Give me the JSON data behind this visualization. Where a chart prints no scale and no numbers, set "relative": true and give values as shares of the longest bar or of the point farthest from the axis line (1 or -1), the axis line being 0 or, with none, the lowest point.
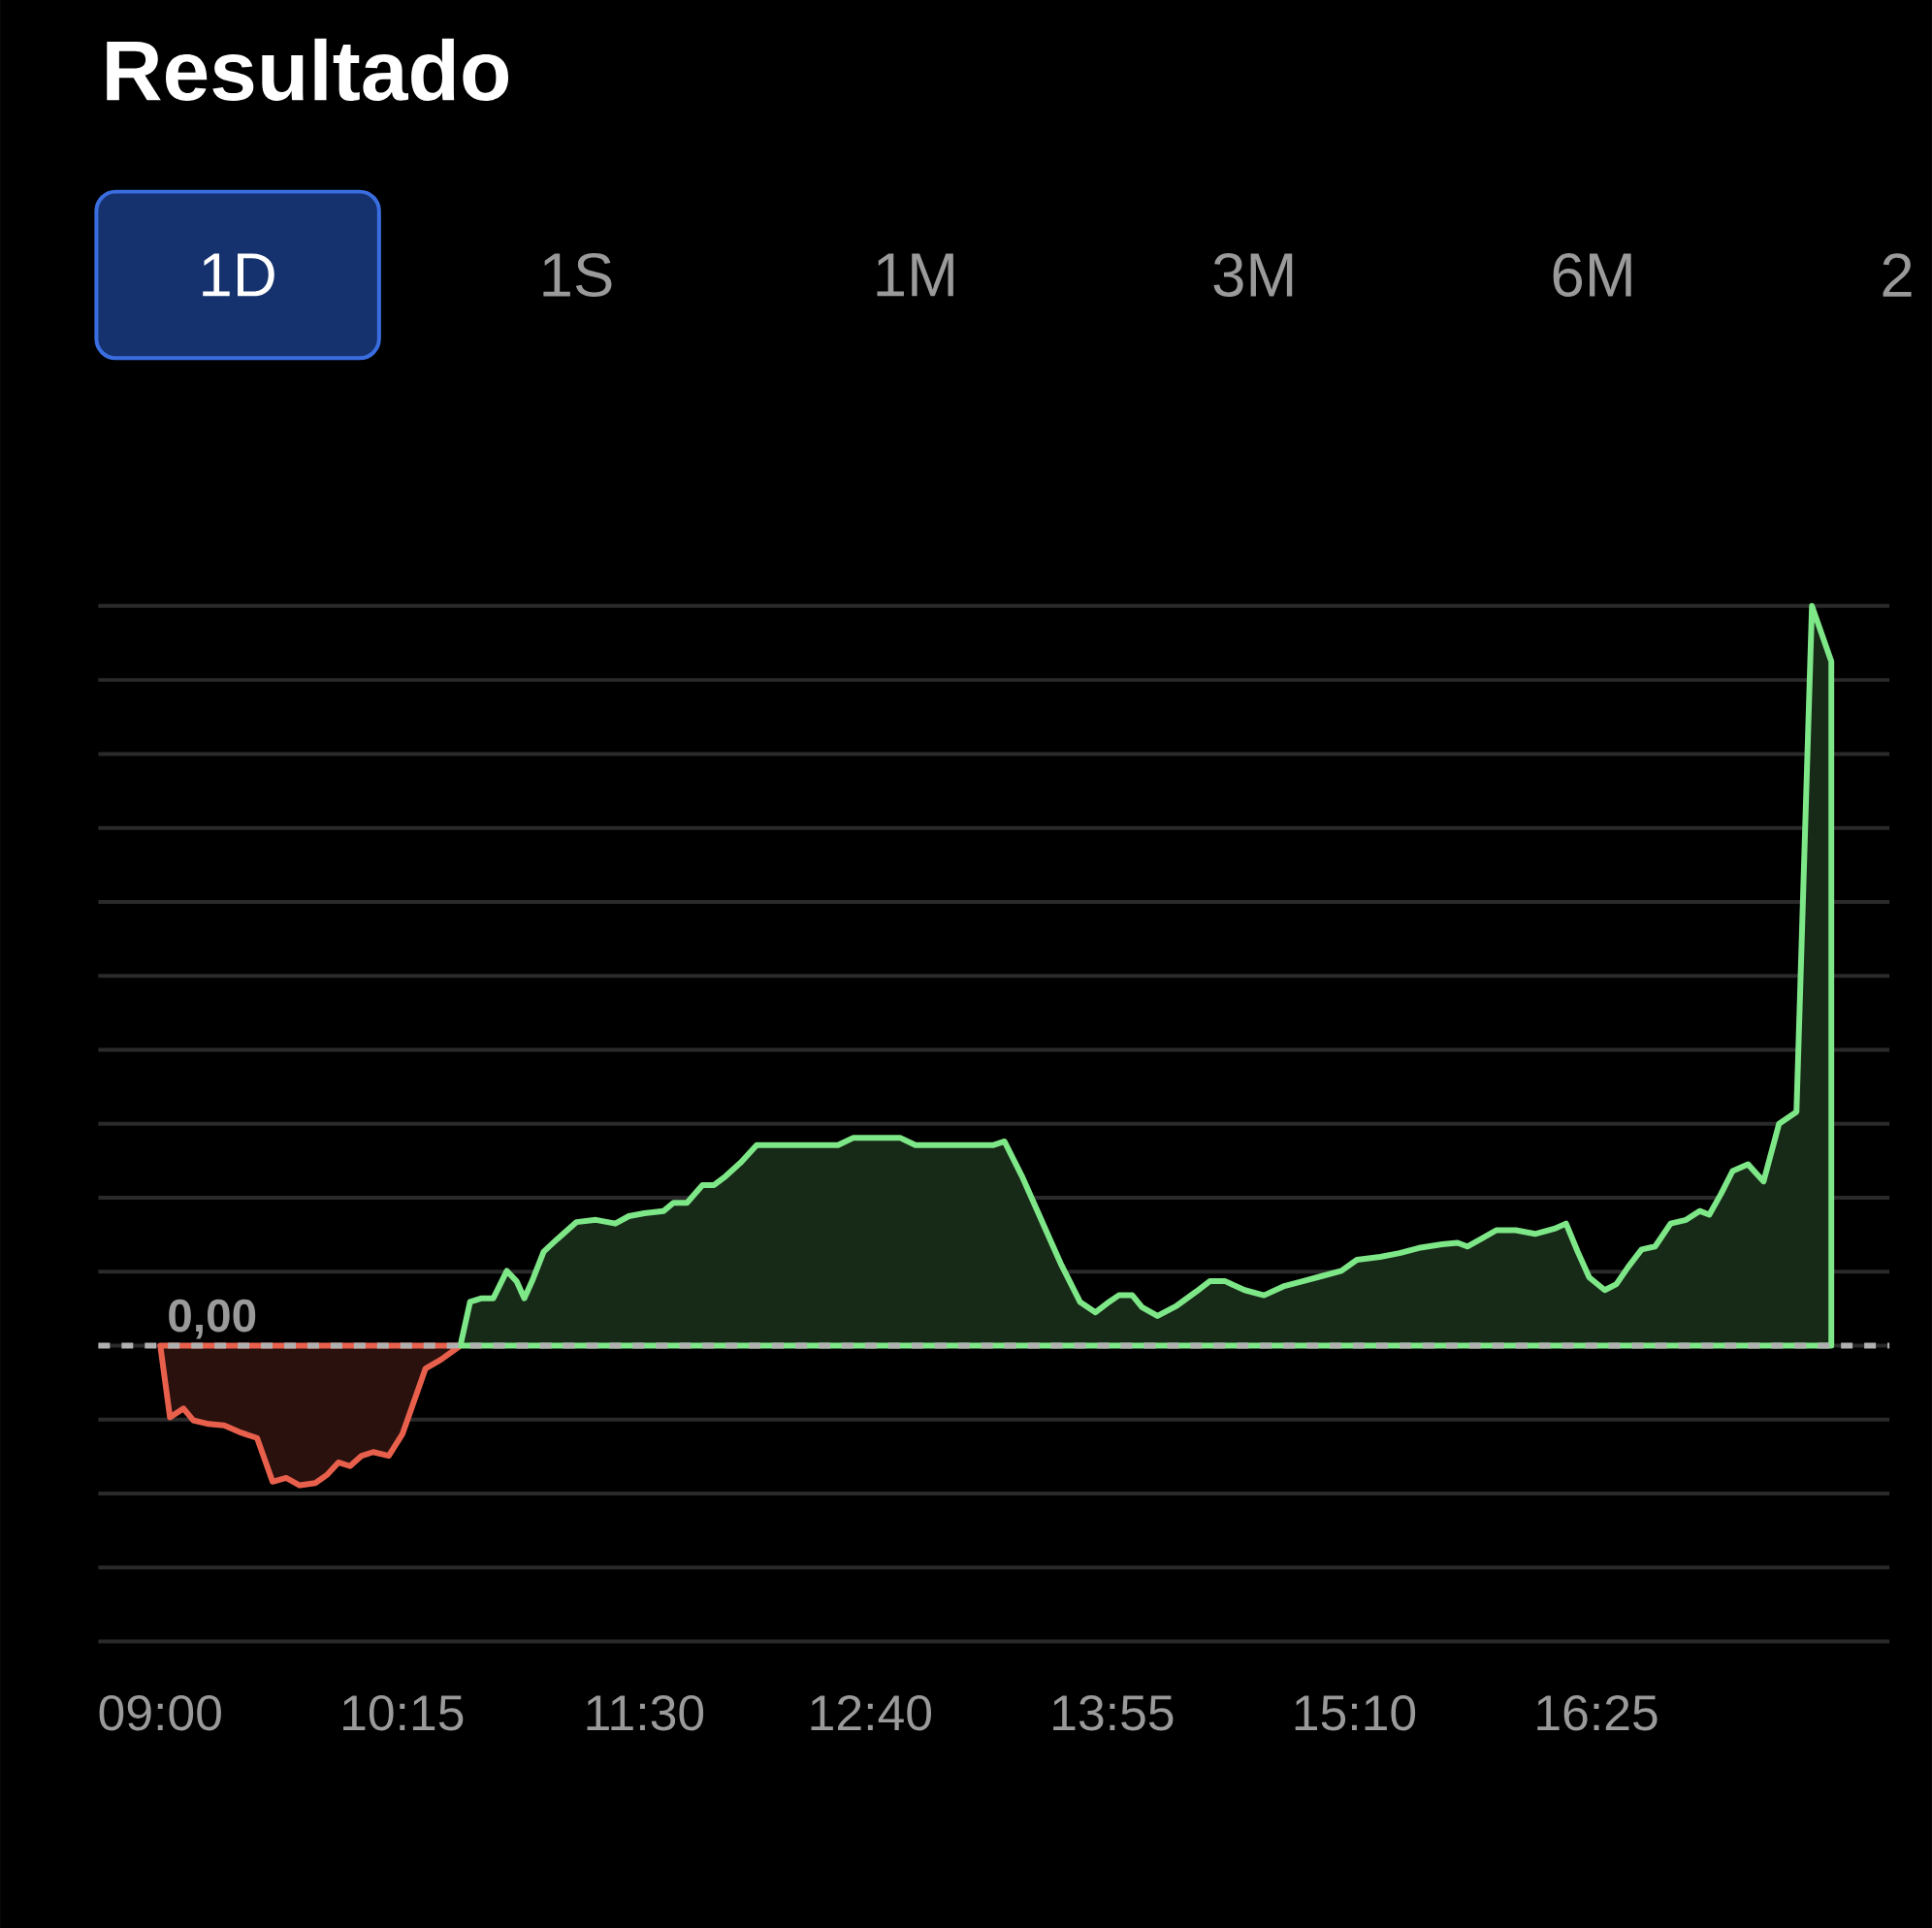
{
  "chart_data": {
    "type": "area",
    "title": "Resultado",
    "relative": true,
    "annotations": [
      "1D",
      "1S",
      "1M",
      "3M",
      "6M",
      "2"
    ],
    "xlim": [
      8.68,
      17.93
    ],
    "xticks": [
      {
        "value": 9.0,
        "label": "09:00"
      },
      {
        "value": 10.25,
        "label": "10:15"
      },
      {
        "value": 11.5,
        "label": "11:30"
      },
      {
        "value": 12.667,
        "label": "12:40"
      },
      {
        "value": 13.917,
        "label": "13:55"
      },
      {
        "value": 15.167,
        "label": "15:10"
      },
      {
        "value": 16.417,
        "label": "16:25"
      }
    ],
    "tick_labels": "x",
    "grid": "y",
    "marker": "none",
    "line_style": "solid",
    "ref_lines": [
      {
        "axis": "y",
        "value": 0,
        "label": "0,00",
        "line_style": "dotted",
        "color": "#b0b0b0"
      }
    ],
    "series": [
      {
        "color": "#e8604c",
        "x": [
          9.0,
          9.05,
          9.12,
          9.17,
          9.25,
          9.33,
          9.42,
          9.5,
          9.58,
          9.65,
          9.72,
          9.8,
          9.86,
          9.92,
          9.98,
          10.04,
          10.1,
          10.18,
          10.25,
          10.3,
          10.37,
          10.45,
          10.55
        ],
        "values": [
          0,
          -0.097,
          -0.085,
          -0.101,
          -0.106,
          -0.108,
          -0.118,
          -0.125,
          -0.184,
          -0.179,
          -0.189,
          -0.186,
          -0.175,
          -0.158,
          -0.163,
          -0.149,
          -0.144,
          -0.149,
          -0.12,
          -0.083,
          -0.031,
          -0.019,
          0
        ]
      },
      {
        "color": "#7ee787",
        "x": [
          10.55,
          10.6,
          10.66,
          10.72,
          10.79,
          10.84,
          10.88,
          10.92,
          10.98,
          11.05,
          11.15,
          11.25,
          11.35,
          11.42,
          11.5,
          11.6,
          11.65,
          11.72,
          11.8,
          11.86,
          11.92,
          12.0,
          12.08,
          12.2,
          12.35,
          12.5,
          12.58,
          12.7,
          12.82,
          12.9,
          13.05,
          13.2,
          13.3,
          13.36,
          13.45,
          13.55,
          13.65,
          13.75,
          13.83,
          13.9,
          13.95,
          14.02,
          14.07,
          14.15,
          14.25,
          14.35,
          14.42,
          14.5,
          14.6,
          14.7,
          14.8,
          14.9,
          15.0,
          15.1,
          15.18,
          15.3,
          15.4,
          15.5,
          15.62,
          15.7,
          15.75,
          15.82,
          15.9,
          16.0,
          16.1,
          16.2,
          16.26,
          16.32,
          16.38,
          16.46,
          16.52,
          16.58,
          16.65,
          16.72,
          16.8,
          16.88,
          16.95,
          17.0,
          17.06,
          17.12,
          17.2,
          17.28,
          17.36,
          17.45,
          17.53,
          17.63
        ],
        "values": [
          0,
          0.059,
          0.064,
          0.064,
          0.101,
          0.087,
          0.064,
          0.087,
          0.127,
          0.144,
          0.167,
          0.17,
          0.165,
          0.175,
          0.179,
          0.182,
          0.193,
          0.193,
          0.217,
          0.217,
          0.229,
          0.248,
          0.271,
          0.271,
          0.271,
          0.271,
          0.281,
          0.281,
          0.281,
          0.271,
          0.271,
          0.271,
          0.271,
          0.276,
          0.229,
          0.17,
          0.111,
          0.059,
          0.045,
          0.059,
          0.068,
          0.068,
          0.052,
          0.04,
          0.054,
          0.073,
          0.087,
          0.087,
          0.075,
          0.068,
          0.08,
          0.087,
          0.094,
          0.101,
          0.116,
          0.12,
          0.125,
          0.132,
          0.137,
          0.139,
          0.134,
          0.144,
          0.156,
          0.156,
          0.151,
          0.158,
          0.165,
          0.127,
          0.092,
          0.075,
          0.083,
          0.106,
          0.13,
          0.134,
          0.165,
          0.17,
          0.182,
          0.177,
          0.205,
          0.236,
          0.245,
          0.222,
          0.3,
          0.316,
          1,
          0.925
        ]
      }
    ]
  }
}
